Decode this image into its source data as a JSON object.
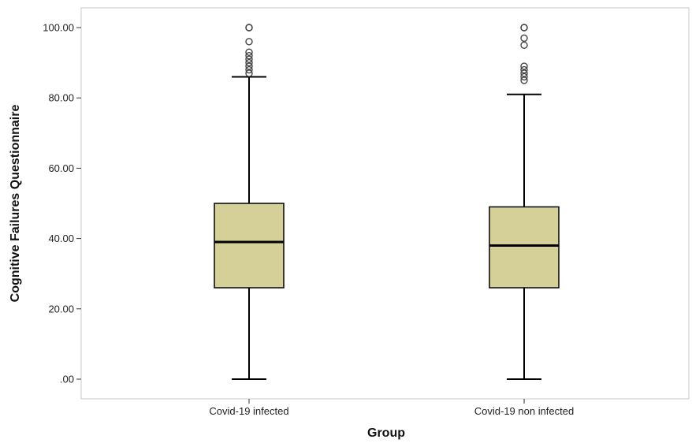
{
  "chart_data": {
    "type": "box",
    "xlabel": "Group",
    "ylabel": "Cognitive Failures Questionnaire",
    "ylim": [
      0,
      100
    ],
    "yticks": [
      0,
      20,
      40,
      60,
      80,
      100
    ],
    "ytick_labels": [
      ".00",
      "20.00",
      "40.00",
      "60.00",
      "80.00",
      "100.00"
    ],
    "grid": false,
    "box_color": "#d5d097",
    "categories": [
      "Covid-19 infected",
      "Covid-19 non infected"
    ],
    "boxes": [
      {
        "category": "Covid-19 infected",
        "min": 0,
        "q1": 26,
        "median": 39,
        "q3": 50,
        "max": 86,
        "outliers": [
          87,
          88,
          89,
          90,
          91,
          92,
          93,
          96,
          100,
          100
        ]
      },
      {
        "category": "Covid-19 non infected",
        "min": 0,
        "q1": 26,
        "median": 38,
        "q3": 49,
        "max": 81,
        "outliers": [
          85,
          86,
          87,
          88,
          89,
          95,
          97,
          100,
          100
        ]
      }
    ]
  }
}
